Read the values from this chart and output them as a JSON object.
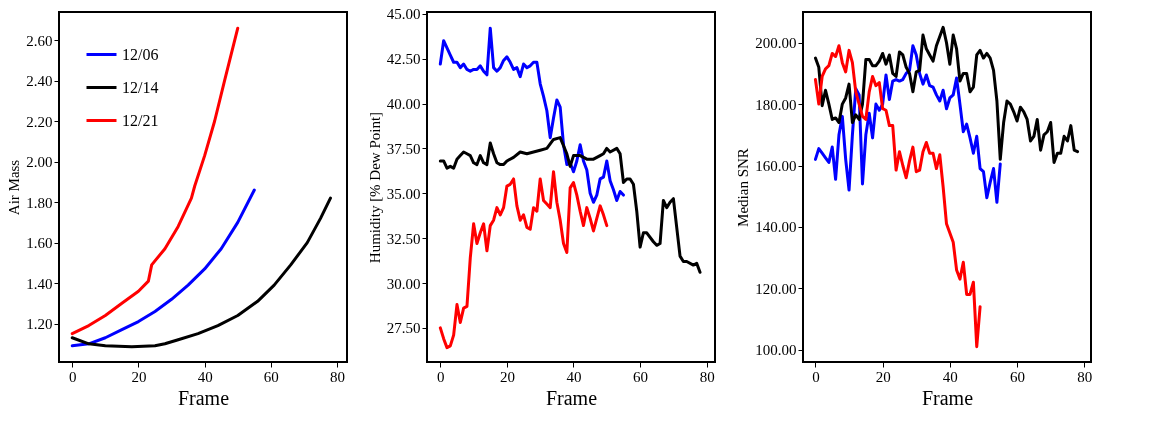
{
  "chart_data": [
    {
      "type": "line",
      "xlabel": "Frame",
      "ylabel": "Air Mass",
      "xlim": [
        -4,
        83
      ],
      "xticks": [
        0,
        20,
        40,
        60,
        80
      ],
      "ylim": [
        1.01,
        2.74
      ],
      "yticks": [
        {
          "value": 1.2,
          "label": "1.20"
        },
        {
          "value": 1.4,
          "label": "1.40"
        },
        {
          "value": 1.6,
          "label": "1.60"
        },
        {
          "value": 1.8,
          "label": "1.80"
        },
        {
          "value": 2.0,
          "label": "2.00"
        },
        {
          "value": 2.2,
          "label": "2.20"
        },
        {
          "value": 2.4,
          "label": "2.40"
        },
        {
          "value": 2.6,
          "label": "2.60"
        }
      ],
      "grid": false,
      "legend": "top left",
      "line_style": "solid",
      "series": [
        {
          "name": "12/06",
          "color": "#0000ff",
          "x": [
            0,
            5,
            10,
            15,
            20,
            25,
            30,
            35,
            40,
            45,
            50,
            55
          ],
          "values": [
            1.09,
            1.1,
            1.13,
            1.17,
            1.21,
            1.26,
            1.32,
            1.39,
            1.47,
            1.57,
            1.7,
            1.86
          ]
        },
        {
          "name": "12/14",
          "color": "#000000",
          "x": [
            0,
            5,
            10,
            18,
            25,
            28,
            32,
            38,
            44,
            50,
            56,
            61,
            66,
            71,
            75,
            78
          ],
          "values": [
            1.13,
            1.1,
            1.09,
            1.085,
            1.09,
            1.1,
            1.12,
            1.15,
            1.19,
            1.24,
            1.31,
            1.39,
            1.49,
            1.6,
            1.72,
            1.82
          ]
        },
        {
          "name": "12/21",
          "color": "#ff0000",
          "x": [
            0,
            5,
            10,
            15,
            20,
            23,
            24,
            28,
            32,
            36,
            37,
            40,
            43,
            46,
            50
          ],
          "values": [
            1.15,
            1.19,
            1.24,
            1.3,
            1.36,
            1.41,
            1.49,
            1.57,
            1.68,
            1.82,
            1.88,
            2.03,
            2.2,
            2.4,
            2.66
          ]
        }
      ]
    },
    {
      "type": "line",
      "xlabel": "Frame",
      "ylabel": "Humidity [% Dew Point]",
      "xlim": [
        -4,
        82.5
      ],
      "xticks": [
        0,
        20,
        40,
        60,
        80
      ],
      "ylim": [
        25.6,
        45.1
      ],
      "yticks": [
        {
          "value": 27.5,
          "label": "27.50"
        },
        {
          "value": 30,
          "label": "30.00"
        },
        {
          "value": 32.5,
          "label": "32.50"
        },
        {
          "value": 35,
          "label": "35.00"
        },
        {
          "value": 37.5,
          "label": "37.50"
        },
        {
          "value": 40,
          "label": "40.00"
        },
        {
          "value": 42.5,
          "label": "42.50"
        },
        {
          "value": 45,
          "label": "45.00"
        }
      ],
      "grid": false,
      "line_style": "solid",
      "series": [
        {
          "color": "#0000ff",
          "x": [
            0,
            1,
            2,
            3,
            4,
            5,
            6,
            7,
            8,
            9,
            10,
            11,
            12,
            13,
            14,
            15,
            16,
            17,
            18,
            19,
            20,
            21,
            22,
            23,
            24,
            25,
            26,
            27,
            28,
            29,
            30,
            31,
            32,
            33,
            34,
            35,
            36,
            37,
            38,
            39,
            40,
            41,
            42,
            43,
            44,
            45,
            46,
            47,
            48,
            49,
            50,
            51,
            52,
            53,
            54,
            55
          ],
          "values": [
            42.2,
            43.5,
            43.1,
            42.7,
            42.3,
            42.3,
            42.0,
            42.2,
            41.9,
            41.8,
            41.9,
            41.9,
            42.1,
            41.8,
            41.6,
            44.2,
            42.0,
            41.8,
            42.0,
            42.4,
            42.6,
            42.3,
            41.9,
            42.0,
            41.5,
            42.2,
            42.0,
            42.1,
            42.3,
            42.3,
            41.1,
            40.4,
            39.6,
            38.1,
            39.2,
            40.2,
            39.8,
            37.7,
            36.6,
            36.7,
            36.2,
            36.8,
            37.7,
            36.8,
            36.3,
            35.0,
            34.5,
            34.9,
            35.8,
            35.9,
            36.8,
            35.7,
            35.2,
            34.6,
            35.1,
            34.9
          ]
        },
        {
          "color": "#000000",
          "x": [
            0,
            1,
            2,
            3,
            4,
            5,
            6,
            7,
            8,
            9,
            10,
            11,
            12,
            13,
            14,
            15,
            16,
            17,
            18,
            19,
            20,
            22,
            24,
            26,
            28,
            30,
            32,
            34,
            36,
            38,
            39,
            40,
            42,
            44,
            46,
            48,
            49,
            50,
            51,
            53,
            54,
            55,
            56,
            57,
            58,
            59,
            60,
            61,
            62,
            64,
            65,
            66,
            67,
            68,
            69,
            70,
            71,
            72,
            73,
            74,
            76,
            77,
            78
          ],
          "values": [
            36.8,
            36.8,
            36.4,
            36.5,
            36.4,
            36.9,
            37.1,
            37.3,
            37.2,
            37.1,
            36.7,
            36.6,
            37.1,
            36.7,
            36.6,
            37.8,
            37.2,
            36.7,
            36.6,
            36.6,
            36.8,
            37.0,
            37.3,
            37.2,
            37.3,
            37.4,
            37.5,
            38.0,
            38.1,
            37.2,
            36.5,
            37.1,
            37.1,
            36.9,
            36.9,
            37.1,
            37.2,
            37.5,
            37.3,
            37.5,
            37.2,
            35.6,
            35.8,
            35.8,
            35.5,
            34.0,
            32.0,
            32.8,
            32.8,
            32.3,
            32.1,
            32.2,
            34.6,
            34.2,
            34.5,
            34.7,
            33.1,
            31.5,
            31.2,
            31.2,
            31.0,
            31.1,
            30.6
          ]
        },
        {
          "color": "#ff0000",
          "x": [
            0,
            1,
            2,
            3,
            4,
            5,
            6,
            7,
            8,
            9,
            10,
            11,
            12,
            13,
            14,
            15,
            16,
            17,
            18,
            19,
            20,
            21,
            22,
            23,
            24,
            25,
            26,
            27,
            28,
            29,
            30,
            31,
            32,
            33,
            34,
            35,
            36,
            37,
            38,
            39,
            40,
            41,
            42,
            43,
            44,
            45,
            46,
            47,
            48,
            49,
            50
          ],
          "values": [
            27.5,
            26.9,
            26.4,
            26.5,
            27.1,
            28.8,
            27.8,
            28.6,
            28.7,
            31.4,
            33.3,
            32.2,
            32.8,
            33.3,
            31.8,
            33.2,
            33.5,
            34.2,
            33.8,
            34.2,
            35.4,
            35.5,
            35.8,
            34.3,
            33.5,
            33.8,
            33.1,
            33.0,
            34.2,
            34.0,
            35.8,
            34.6,
            34.4,
            34.2,
            36.2,
            34.5,
            33.5,
            32.2,
            31.7,
            35.3,
            35.6,
            34.9,
            34.0,
            33.2,
            34.2,
            33.6,
            32.9,
            33.6,
            34.3,
            33.8,
            33.2
          ]
        }
      ]
    },
    {
      "type": "line",
      "xlabel": "Frame",
      "ylabel": "Median SNR",
      "xlim": [
        -3.7,
        82
      ],
      "xticks": [
        0,
        20,
        40,
        60,
        80
      ],
      "ylim": [
        96,
        210
      ],
      "yticks": [
        {
          "value": 100,
          "label": "100.00"
        },
        {
          "value": 120,
          "label": "120.00"
        },
        {
          "value": 140,
          "label": "140.00"
        },
        {
          "value": 160,
          "label": "160.00"
        },
        {
          "value": 180,
          "label": "180.00"
        },
        {
          "value": 200,
          "label": "200.00"
        }
      ],
      "grid": false,
      "line_style": "solid",
      "series": [
        {
          "color": "#0000ff",
          "x": [
            0,
            1,
            2,
            3,
            4,
            5,
            6,
            7,
            8,
            9,
            10,
            11,
            12,
            13,
            14,
            15,
            16,
            17,
            18,
            19,
            20,
            21,
            22,
            23,
            24,
            25,
            26,
            27,
            28,
            29,
            30,
            31,
            32,
            33,
            34,
            35,
            36,
            37,
            38,
            39,
            40,
            41,
            42,
            43,
            44,
            45,
            46,
            47,
            48,
            49,
            50,
            51,
            52,
            53,
            54,
            55
          ],
          "values": [
            162,
            165.5,
            164,
            162.5,
            161,
            166,
            155.5,
            170,
            176,
            162,
            152,
            170,
            185,
            183,
            154,
            170,
            177,
            169,
            180,
            178,
            180,
            189.5,
            181.5,
            187.5,
            188,
            187.5,
            188,
            190,
            191,
            199,
            196,
            190,
            186.5,
            189.5,
            186,
            185.5,
            183,
            181,
            184.5,
            178.5,
            182,
            183,
            188.5,
            180,
            171,
            173.5,
            169,
            164,
            169.5,
            159,
            158,
            149.5,
            154.5,
            159,
            148,
            160.5
          ]
        },
        {
          "color": "#000000",
          "x": [
            0,
            1,
            2,
            3,
            4,
            5,
            6,
            7,
            8,
            9,
            10,
            11,
            12,
            13,
            14,
            15,
            16,
            17,
            18,
            19,
            20,
            21,
            22,
            23,
            24,
            25,
            26,
            27,
            28,
            29,
            30,
            31,
            32,
            33,
            34,
            35,
            36,
            37,
            38,
            39,
            40,
            41,
            42,
            43,
            44,
            45,
            46,
            47,
            48,
            49,
            50,
            51,
            52,
            53,
            54,
            55,
            56,
            57,
            58,
            59,
            60,
            61,
            62,
            63,
            64,
            65,
            66,
            67,
            68,
            69,
            70,
            71,
            72,
            73,
            74,
            75,
            76,
            77,
            78
          ],
          "values": [
            195,
            192,
            179.5,
            184.5,
            180,
            175,
            175.5,
            174,
            180,
            182,
            186.5,
            174,
            176.5,
            175,
            180,
            194.5,
            194.5,
            192.5,
            192.5,
            194,
            196.5,
            193,
            196,
            190,
            189,
            197,
            196,
            192,
            190,
            184,
            190.5,
            191,
            202.5,
            198,
            196,
            194,
            199,
            202,
            205,
            200,
            193,
            202.5,
            198,
            187.5,
            190,
            190,
            184,
            185.5,
            196,
            197.5,
            195,
            196.5,
            195,
            191,
            181,
            162,
            174,
            181,
            180,
            177.5,
            174.5,
            179,
            177.5,
            175,
            168,
            169.5,
            175,
            165,
            170,
            171,
            174,
            161,
            164,
            164,
            169.5,
            168,
            173,
            165,
            164.5
          ]
        },
        {
          "color": "#ff0000",
          "x": [
            0,
            1,
            2,
            3,
            4,
            5,
            6,
            7,
            8,
            9,
            10,
            11,
            12,
            13,
            14,
            15,
            16,
            17,
            18,
            19,
            20,
            21,
            22,
            23,
            24,
            25,
            26,
            27,
            28,
            29,
            30,
            31,
            32,
            33,
            34,
            35,
            36,
            37,
            38,
            39,
            40,
            41,
            42,
            43,
            44,
            45,
            46,
            47,
            48,
            49
          ],
          "values": [
            188,
            180,
            189,
            191.5,
            192.5,
            196.5,
            195.5,
            199,
            193.5,
            190.5,
            197.5,
            193.5,
            184,
            180,
            176,
            175,
            184,
            189,
            186,
            187,
            178.5,
            178,
            173,
            173,
            158.5,
            164.5,
            160,
            156,
            161.5,
            166,
            158,
            158.5,
            164.5,
            167.5,
            164,
            164,
            159,
            163.5,
            153,
            141,
            138,
            135,
            126,
            123,
            128.5,
            118,
            118,
            122,
            101,
            114
          ]
        }
      ]
    }
  ]
}
